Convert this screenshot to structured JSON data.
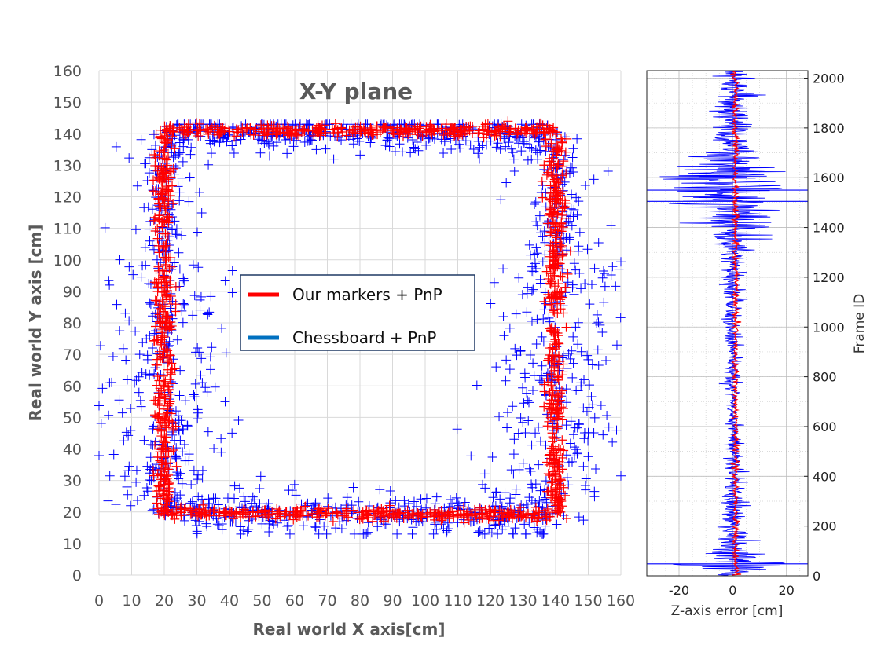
{
  "chart_data": [
    {
      "type": "scatter",
      "title": "X-Y plane",
      "xlabel": "Real world X axis[cm]",
      "ylabel": "Real world Y axis [cm]",
      "xlim": [
        0,
        160
      ],
      "ylim": [
        0,
        160
      ],
      "xticks": [
        "0",
        "10",
        "20",
        "30",
        "40",
        "50",
        "60",
        "70",
        "80",
        "90",
        "100",
        "110",
        "120",
        "130",
        "140",
        "150",
        "160"
      ],
      "yticks": [
        "0",
        "10",
        "20",
        "30",
        "40",
        "50",
        "60",
        "70",
        "80",
        "90",
        "100",
        "110",
        "120",
        "130",
        "140",
        "150",
        "160"
      ],
      "grid": true,
      "marker": "plus",
      "legend": {
        "placement": "center",
        "entries": [
          {
            "name": "Our markers + PnP",
            "color": "#ff0000"
          },
          {
            "name": "Chessboard + PnP",
            "color": "#0070c0"
          }
        ]
      },
      "series": [
        {
          "name": "Our markers + PnP",
          "color": "#ff0000",
          "shape": "square trajectory",
          "path": [
            [
              20,
              20
            ],
            [
              20,
              141
            ],
            [
              140,
              141
            ],
            [
              140,
              19
            ],
            [
              20,
              20
            ]
          ],
          "spread_cm": 1.5,
          "approx_points": 1500
        },
        {
          "name": "Chessboard + PnP",
          "color": "#0000ff",
          "shape": "square trajectory",
          "path": [
            [
              20,
              20
            ],
            [
              20,
              140
            ],
            [
              140,
              140
            ],
            [
              140,
              18
            ],
            [
              20,
              20
            ]
          ],
          "spread_cm": 7,
          "approx_points": 1500,
          "x_range_observed": [
            0,
            160
          ],
          "y_range_observed": [
            13,
            143
          ]
        }
      ]
    },
    {
      "type": "line",
      "xlabel": "Z-axis error [cm]",
      "ylabel": "Frame ID",
      "xlim": [
        -32,
        28
      ],
      "ylim": [
        0,
        2030
      ],
      "xticks": [
        "-20",
        "0",
        "20"
      ],
      "yticks": [
        "0",
        "200",
        "400",
        "600",
        "800",
        "1000",
        "1200",
        "1400",
        "1600",
        "1800",
        "2000"
      ],
      "grid": true,
      "series": [
        {
          "name": "Chessboard + PnP",
          "color": "#0000ff",
          "frames": 2030,
          "mean": 0,
          "amplitude_profile": [
            {
              "frame": 0,
              "amplitude": 4
            },
            {
              "frame": 50,
              "amplitude": 30
            },
            {
              "frame": 100,
              "amplitude": 8
            },
            {
              "frame": 300,
              "amplitude": 6
            },
            {
              "frame": 600,
              "amplitude": 3
            },
            {
              "frame": 1000,
              "amplitude": 4
            },
            {
              "frame": 1300,
              "amplitude": 6
            },
            {
              "frame": 1500,
              "amplitude": 28
            },
            {
              "frame": 1550,
              "amplitude": 30
            },
            {
              "frame": 1700,
              "amplitude": 10
            },
            {
              "frame": 2030,
              "amplitude": 6
            }
          ]
        },
        {
          "name": "Our markers + PnP",
          "color": "#ff0000",
          "frames": 2030,
          "mean": 1,
          "amplitude": 1
        }
      ]
    }
  ]
}
